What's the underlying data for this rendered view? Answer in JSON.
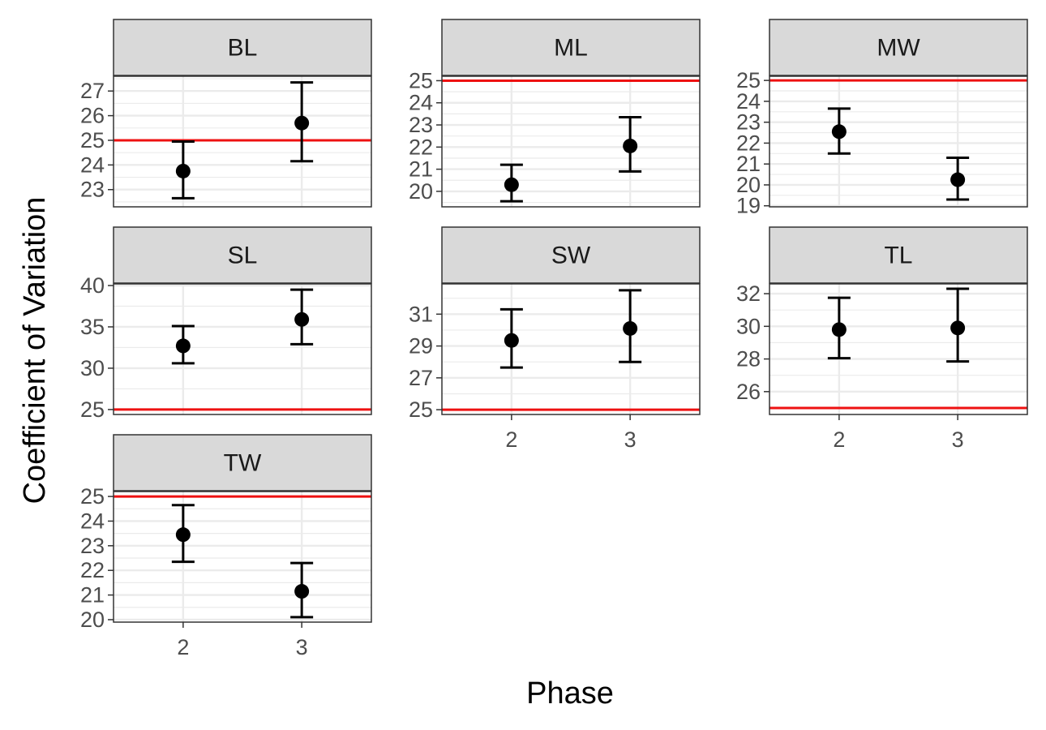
{
  "chart_data": {
    "type": "scatter",
    "subtype": "faceted-errorbar",
    "xlabel": "Phase",
    "ylabel": "Coefficient of Variation",
    "x_categories": [
      "2",
      "3"
    ],
    "reference_line": {
      "y": 25,
      "color": "#ee1111"
    },
    "point_color": "#000000",
    "grid": true,
    "facets": [
      {
        "name": "BL",
        "ylim": [
          22.3,
          27.6
        ],
        "yticks": [
          "23",
          "24",
          "25",
          "26",
          "27"
        ],
        "points": [
          {
            "x": "2",
            "y": 23.75,
            "lo": 22.65,
            "hi": 24.95
          },
          {
            "x": "3",
            "y": 25.7,
            "lo": 24.15,
            "hi": 27.35
          }
        ]
      },
      {
        "name": "ML",
        "ylim": [
          19.3,
          25.2
        ],
        "yticks": [
          "20",
          "21",
          "22",
          "23",
          "24",
          "25"
        ],
        "points": [
          {
            "x": "2",
            "y": 20.3,
            "lo": 19.55,
            "hi": 21.2
          },
          {
            "x": "3",
            "y": 22.05,
            "lo": 20.9,
            "hi": 23.35
          }
        ]
      },
      {
        "name": "MW",
        "ylim": [
          18.95,
          25.2
        ],
        "yticks": [
          "19",
          "20",
          "21",
          "22",
          "23",
          "24",
          "25"
        ],
        "points": [
          {
            "x": "2",
            "y": 22.55,
            "lo": 21.5,
            "hi": 23.65
          },
          {
            "x": "3",
            "y": 20.25,
            "lo": 19.3,
            "hi": 21.3
          }
        ]
      },
      {
        "name": "SL",
        "ylim": [
          24.4,
          40.2
        ],
        "yticks": [
          "25",
          "30",
          "35",
          "40"
        ],
        "points": [
          {
            "x": "2",
            "y": 32.7,
            "lo": 30.6,
            "hi": 35.1
          },
          {
            "x": "3",
            "y": 35.9,
            "lo": 32.9,
            "hi": 39.5
          }
        ]
      },
      {
        "name": "SW",
        "ylim": [
          24.7,
          32.9
        ],
        "yticks": [
          "25",
          "27",
          "29",
          "31"
        ],
        "points": [
          {
            "x": "2",
            "y": 29.35,
            "lo": 27.65,
            "hi": 31.3
          },
          {
            "x": "3",
            "y": 30.1,
            "lo": 28.0,
            "hi": 32.5
          }
        ]
      },
      {
        "name": "TL",
        "ylim": [
          24.6,
          32.6
        ],
        "yticks": [
          "26",
          "28",
          "30",
          "32"
        ],
        "points": [
          {
            "x": "2",
            "y": 29.8,
            "lo": 28.05,
            "hi": 31.75
          },
          {
            "x": "3",
            "y": 29.9,
            "lo": 27.85,
            "hi": 32.3
          }
        ]
      },
      {
        "name": "TW",
        "ylim": [
          19.9,
          25.2
        ],
        "yticks": [
          "20",
          "21",
          "22",
          "23",
          "24",
          "25"
        ],
        "points": [
          {
            "x": "2",
            "y": 23.45,
            "lo": 22.35,
            "hi": 24.65
          },
          {
            "x": "3",
            "y": 21.15,
            "lo": 20.1,
            "hi": 22.3
          }
        ]
      }
    ]
  }
}
